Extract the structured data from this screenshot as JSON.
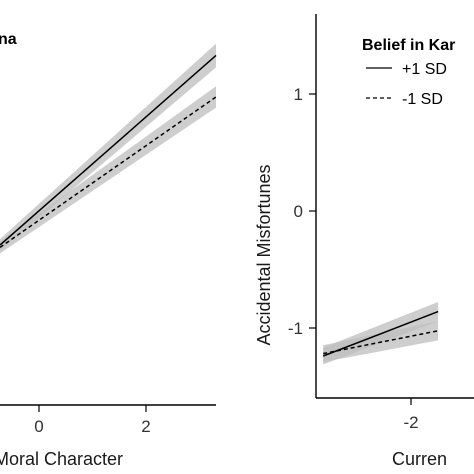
{
  "chart_data": [
    {
      "type": "line",
      "panel_title_fragment": "na",
      "xlabel_fragment": "Moral Character",
      "ylabel": "",
      "x_ticks": [
        0,
        2
      ],
      "xlim": [
        -0.7,
        3.3
      ],
      "ylim": [
        -1.6,
        1.7
      ],
      "grid": false,
      "series": [
        {
          "name": "+1 SD",
          "style": "solid",
          "points": [
            [
              -0.7,
              -0.25
            ],
            [
              3.3,
              1.35
            ]
          ],
          "ci_halfwidth": [
            0.05,
            0.1
          ]
        },
        {
          "name": "-1 SD",
          "style": "dashed",
          "points": [
            [
              -0.7,
              -0.27
            ],
            [
              3.3,
              1.0
            ]
          ],
          "ci_halfwidth": [
            0.05,
            0.09
          ]
        }
      ]
    },
    {
      "type": "line",
      "legend_title": "Belief in Kar",
      "legend_position": "top-right",
      "xlabel_fragment": "Curren",
      "ylabel": "Accidental Misfortunes",
      "x_ticks": [
        -2
      ],
      "y_ticks": [
        1,
        0,
        -1
      ],
      "xlim": [
        -3.1,
        -0.9
      ],
      "ylim": [
        -1.6,
        1.6
      ],
      "grid": false,
      "series": [
        {
          "name": "+1 SD",
          "style": "solid",
          "points": [
            [
              -3.0,
              -1.25
            ],
            [
              -1.4,
              -0.88
            ]
          ],
          "ci_halfwidth": [
            0.07,
            0.08
          ]
        },
        {
          "name": "-1 SD",
          "style": "dashed",
          "points": [
            [
              -3.0,
              -1.23
            ],
            [
              -1.4,
              -1.04
            ]
          ],
          "ci_halfwidth": [
            0.07,
            0.08
          ]
        }
      ]
    }
  ],
  "colors": {
    "line": "#000000",
    "ribbon": "#bdbdbd",
    "axis": "#000000",
    "text": "#333333"
  }
}
